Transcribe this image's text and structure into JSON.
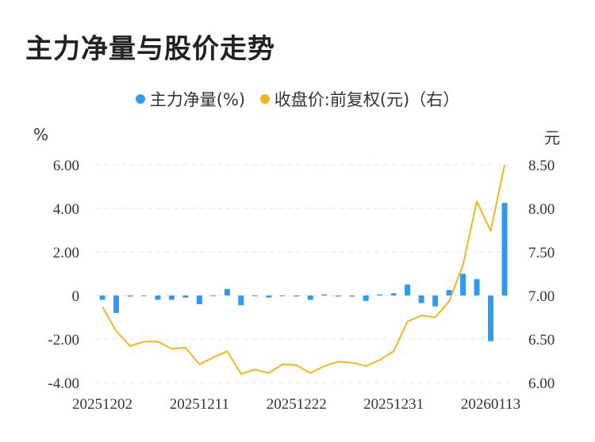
{
  "title": "主力净量与股价走势",
  "legend": [
    {
      "label": "主力净量(%)",
      "color": "#2d9cf0"
    },
    {
      "label": "收盘价:前复权(元)（右）",
      "color": "#f5b51c"
    }
  ],
  "left_unit": "%",
  "right_unit": "元",
  "chart_data": {
    "type": "bar+line",
    "title": "主力净量与股价走势",
    "x_tick_labels": [
      "20251202",
      "20251211",
      "20251222",
      "20251231",
      "20260113"
    ],
    "left_axis": {
      "label": "%",
      "ylim": [
        -4,
        6
      ],
      "ticks": [
        "6.00",
        "4.00",
        "2.00",
        "0",
        "-2.00",
        "-4.00"
      ],
      "tick_values": [
        6,
        4,
        2,
        0,
        -2,
        -4
      ]
    },
    "right_axis": {
      "label": "元",
      "ylim": [
        6.0,
        8.5
      ],
      "ticks": [
        "8.50",
        "8.00",
        "7.50",
        "7.00",
        "6.50",
        "6.00"
      ],
      "tick_values": [
        8.5,
        8.0,
        7.5,
        7.0,
        6.5,
        6.0
      ]
    },
    "grid": true,
    "legend_position": "top",
    "series": [
      {
        "name": "主力净量(%)",
        "kind": "bar",
        "axis": "left",
        "color": "#2d9cf0",
        "values": [
          -0.2,
          -0.8,
          -0.05,
          0,
          -0.2,
          -0.2,
          -0.1,
          -0.4,
          0,
          0.3,
          -0.45,
          0,
          -0.1,
          0,
          -0.05,
          -0.2,
          0.05,
          -0.05,
          -0.05,
          -0.25,
          0.05,
          0.1,
          0.5,
          -0.35,
          -0.5,
          0.25,
          1.0,
          0.75,
          -2.1,
          4.25
        ]
      },
      {
        "name": "收盘价:前复权(元)（右）",
        "kind": "line",
        "axis": "right",
        "color": "#f5b51c",
        "values": [
          6.87,
          6.59,
          6.42,
          6.47,
          6.47,
          6.39,
          6.4,
          6.21,
          6.29,
          6.36,
          6.1,
          6.15,
          6.11,
          6.21,
          6.2,
          6.11,
          6.19,
          6.24,
          6.23,
          6.19,
          6.26,
          6.36,
          6.7,
          6.77,
          6.75,
          6.93,
          7.35,
          8.08,
          7.74,
          8.5
        ]
      }
    ]
  }
}
